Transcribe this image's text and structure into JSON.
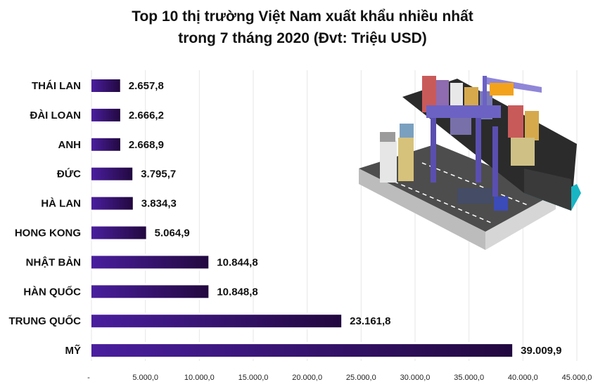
{
  "title_line1": "Top 10 thị trường Việt Nam xuất khẩu nhiều nhất",
  "title_line2": "trong 7 tháng 2020 (Đvt: Triệu USD)",
  "colors": {
    "bar_start": "#4a1e9e",
    "bar_end": "#22083f",
    "background": "#ffffff",
    "grid": "#e6e6e6"
  },
  "illustration_icon": "port-container-crane-ship-illustration",
  "chart_data": {
    "type": "bar",
    "orientation": "horizontal",
    "title": "Top 10 thị trường Việt Nam xuất khẩu nhiều nhất trong 7 tháng 2020 (Đvt: Triệu USD)",
    "categories": [
      "THÁI LAN",
      "ĐÀI LOAN",
      "ANH",
      "ĐỨC",
      "HÀ LAN",
      "HONG KONG",
      "NHẬT BẢN",
      "HÀN QUỐC",
      "TRUNG QUỐC",
      "MỸ"
    ],
    "values": [
      2657.8,
      2666.2,
      2668.9,
      3795.7,
      3834.3,
      5064.9,
      10844.8,
      10848.8,
      23161.8,
      39009.9
    ],
    "value_labels": [
      "2.657,8",
      "2.666,2",
      "2.668,9",
      "3.795,7",
      "3.834,3",
      "5.064,9",
      "10.844,8",
      "10.848,8",
      "23.161,8",
      "39.009,9"
    ],
    "xlim": [
      0,
      45000
    ],
    "ticks": [
      0,
      5000,
      10000,
      15000,
      20000,
      25000,
      30000,
      35000,
      40000,
      45000
    ],
    "tick_labels": [
      "-",
      "5.000,0",
      "10.000,0",
      "15.000,0",
      "20.000,0",
      "25.000,0",
      "30.000,0",
      "35.000,0",
      "40.000,0",
      "45.000,0"
    ],
    "grid": true,
    "legend": "none"
  }
}
